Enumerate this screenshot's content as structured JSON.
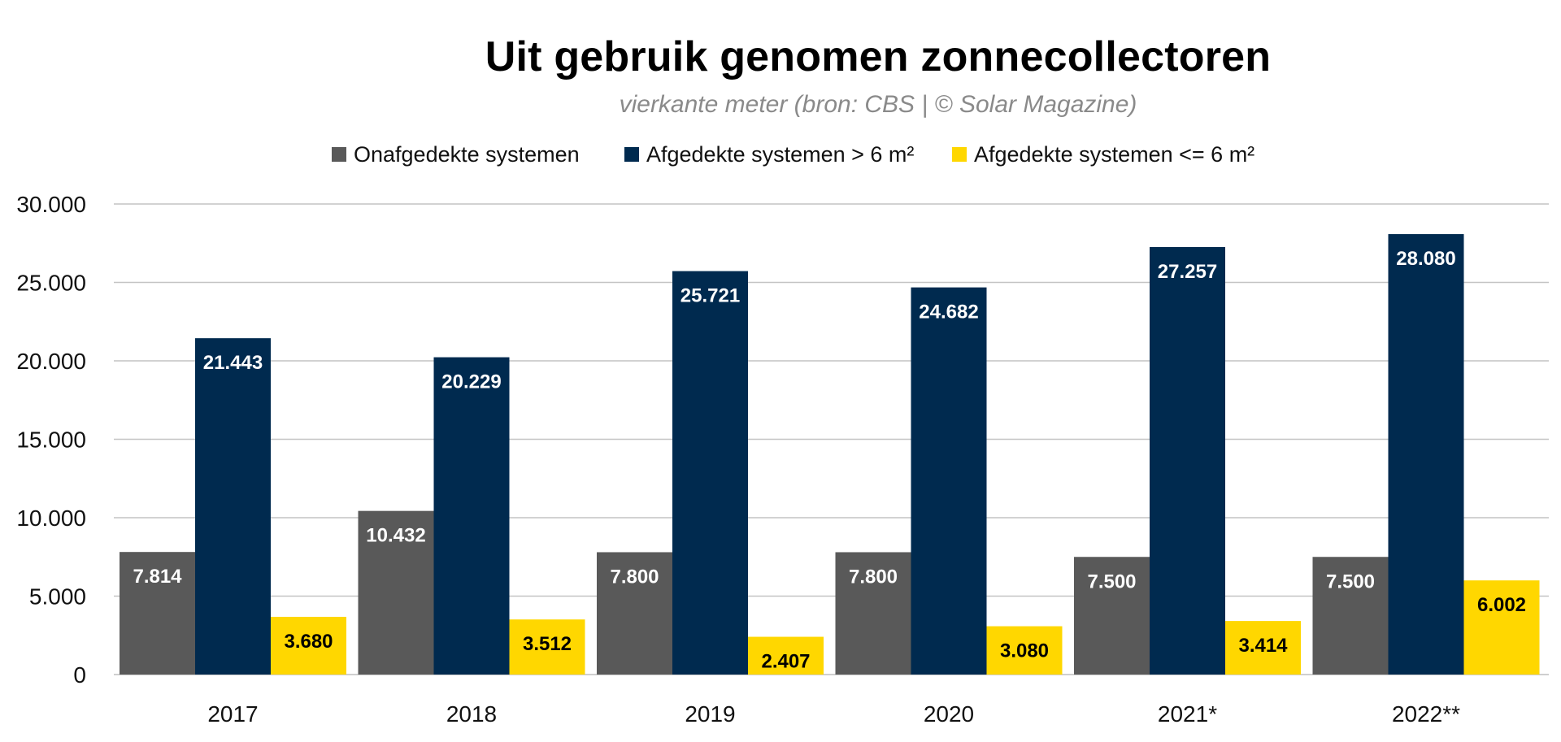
{
  "chart_data": {
    "type": "bar",
    "title": "Uit gebruik genomen zonnecollectoren",
    "subtitle": "vierkante meter (bron: CBS | © Solar Magazine)",
    "categories": [
      "2017",
      "2018",
      "2019",
      "2020",
      "2021*",
      "2022**"
    ],
    "series": [
      {
        "name": "Onafgedekte systemen",
        "color": "#595959",
        "label_color": "#ffffff",
        "values": [
          7814,
          10432,
          7800,
          7800,
          7500,
          7500
        ],
        "labels": [
          "7.814",
          "10.432",
          "7.800",
          "7.800",
          "7.500",
          "7.500"
        ]
      },
      {
        "name": "Afgedekte systemen > 6 m²",
        "color": "#002a4f",
        "label_color": "#ffffff",
        "values": [
          21443,
          20229,
          25721,
          24682,
          27257,
          28080
        ],
        "labels": [
          "21.443",
          "20.229",
          "25.721",
          "24.682",
          "27.257",
          "28.080"
        ]
      },
      {
        "name": "Afgedekte systemen <= 6 m²",
        "color": "#ffd700",
        "label_color": "#000000",
        "values": [
          3680,
          3512,
          2407,
          3080,
          3414,
          6002
        ],
        "labels": [
          "3.680",
          "3.512",
          "2.407",
          "3.080",
          "3.414",
          "6.002"
        ]
      }
    ],
    "ylim": [
      0,
      30000
    ],
    "yticks": [
      0,
      5000,
      10000,
      15000,
      20000,
      25000,
      30000
    ],
    "ytick_labels": [
      "0",
      "5.000",
      "10.000",
      "15.000",
      "20.000",
      "25.000",
      "30.000"
    ],
    "grid": true,
    "legend_position": "top-center",
    "xlabel": "",
    "ylabel": ""
  }
}
